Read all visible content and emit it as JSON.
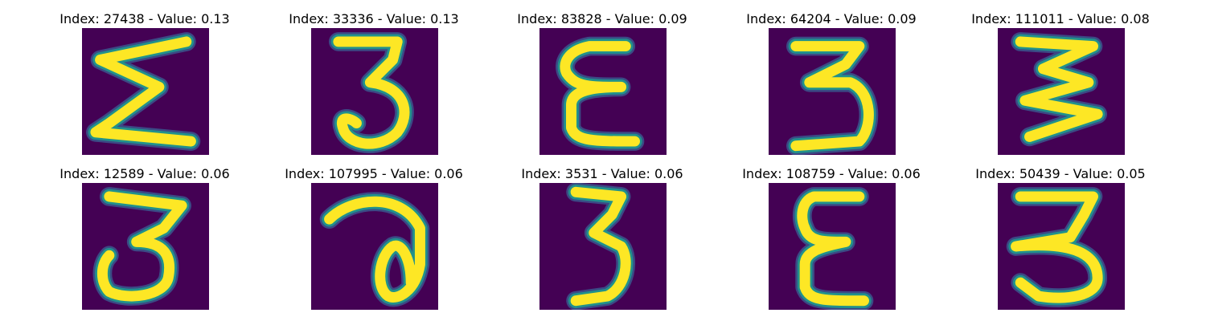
{
  "colors": {
    "background": "#440154",
    "stroke": "#fde725",
    "mid": "#21918c",
    "edge": "#3b528b"
  },
  "chart_data": {
    "type": "image_grid",
    "colormap": "viridis",
    "rows": 2,
    "cols": 5,
    "panels": [
      {
        "title": "Index: 27438 - Value: 0.13",
        "index": 27438,
        "value": 0.13,
        "glyph": "sigma"
      },
      {
        "title": "Index: 33336 - Value: 0.13",
        "index": 33336,
        "value": 0.13,
        "glyph": "three-curl"
      },
      {
        "title": "Index: 83828 - Value: 0.09",
        "index": 83828,
        "value": 0.09,
        "glyph": "epsilon"
      },
      {
        "title": "Index: 64204 - Value: 0.09",
        "index": 64204,
        "value": 0.09,
        "glyph": "three-wide"
      },
      {
        "title": "Index: 111011 - Value: 0.08",
        "index": 111011,
        "value": 0.08,
        "glyph": "three-zigzag"
      },
      {
        "title": "Index: 12589 - Value: 0.06",
        "index": 12589,
        "value": 0.06,
        "glyph": "three-bold"
      },
      {
        "title": "Index: 107995 - Value: 0.06",
        "index": 107995,
        "value": 0.06,
        "glyph": "loop"
      },
      {
        "title": "Index: 3531 - Value: 0.06",
        "index": 3531,
        "value": 0.06,
        "glyph": "three-narrow"
      },
      {
        "title": "Index: 108759 - Value: 0.06",
        "index": 108759,
        "value": 0.06,
        "glyph": "epsilon-tall"
      },
      {
        "title": "Index: 50439 - Value: 0.05",
        "index": 50439,
        "value": 0.05,
        "glyph": "three-bar"
      }
    ]
  }
}
